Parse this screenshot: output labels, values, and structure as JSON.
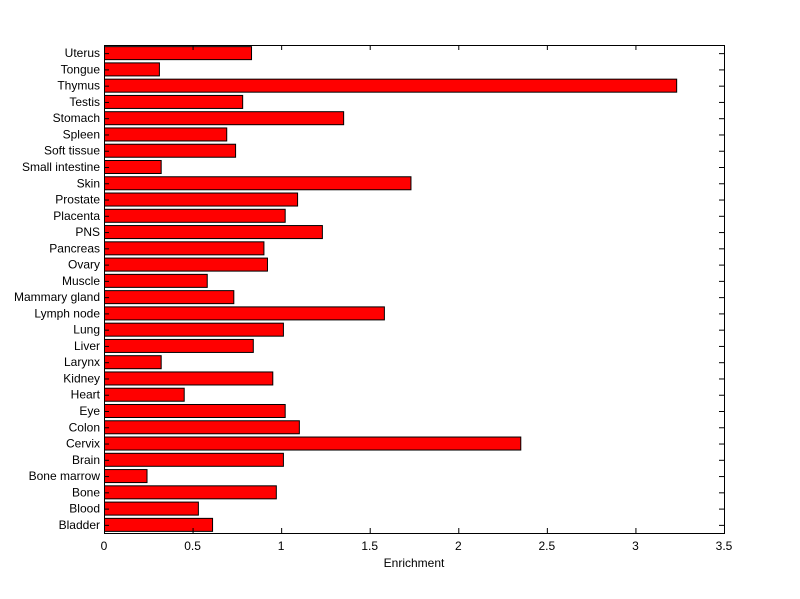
{
  "chart_data": {
    "type": "bar",
    "orientation": "horizontal",
    "title": "",
    "xlabel": "Enrichment",
    "ylabel": "",
    "xlim": [
      0,
      3.5
    ],
    "xticks": [
      0,
      0.5,
      1,
      1.5,
      2,
      2.5,
      3,
      3.5
    ],
    "xtick_labels": [
      "0",
      "0.5",
      "1",
      "1.5",
      "2",
      "2.5",
      "3",
      "3.5"
    ],
    "grid": false,
    "legend": "none",
    "bar_color": "#ff0000",
    "edge_color": "#000000",
    "categories": [
      "Bladder",
      "Blood",
      "Bone",
      "Bone marrow",
      "Brain",
      "Cervix",
      "Colon",
      "Eye",
      "Heart",
      "Kidney",
      "Larynx",
      "Liver",
      "Lung",
      "Lymph node",
      "Mammary gland",
      "Muscle",
      "Ovary",
      "Pancreas",
      "PNS",
      "Placenta",
      "Prostate",
      "Skin",
      "Small intestine",
      "Soft tissue",
      "Spleen",
      "Stomach",
      "Testis",
      "Thymus",
      "Tongue",
      "Uterus"
    ],
    "values": [
      0.61,
      0.53,
      0.97,
      0.24,
      1.01,
      2.35,
      1.1,
      1.02,
      0.45,
      0.95,
      0.32,
      0.84,
      1.01,
      1.58,
      0.73,
      0.58,
      0.92,
      0.9,
      1.23,
      1.02,
      1.09,
      1.73,
      0.32,
      0.74,
      0.69,
      1.35,
      0.78,
      3.23,
      0.31,
      0.83
    ]
  }
}
